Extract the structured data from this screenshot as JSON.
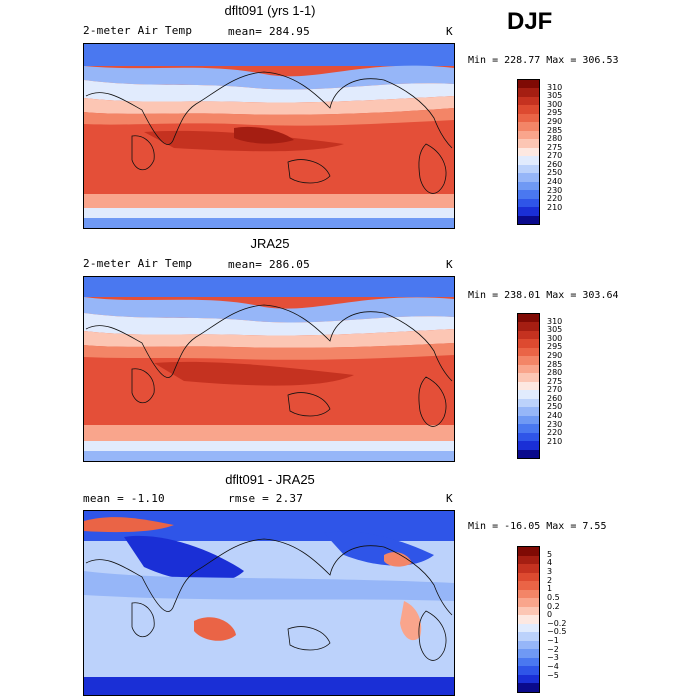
{
  "season": "DJF",
  "colors": {
    "temp_scale": [
      "#0a0a8c",
      "#1a2fd6",
      "#2f55e8",
      "#4a78f0",
      "#6f99f4",
      "#96b6f8",
      "#bcd2fb",
      "#e1ebfd",
      "#fde8e1",
      "#fcc6b4",
      "#f9a58c",
      "#f38567",
      "#ea6446",
      "#dd4a30",
      "#c53220",
      "#a51e12",
      "#7f0a04"
    ],
    "diff_scale": [
      "#0a0a8c",
      "#1a2fd6",
      "#2f55e8",
      "#4a78f0",
      "#6f99f4",
      "#96b6f8",
      "#bcd2fb",
      "#e1ebfd",
      "#fde8e1",
      "#fcc6b4",
      "#f9a58c",
      "#f38567",
      "#ea6446",
      "#dd4a30",
      "#c53220",
      "#a51e12",
      "#7f0a04"
    ]
  },
  "panels": [
    {
      "title": "dflt091 (yrs 1-1)",
      "variable": "2-meter Air Temp",
      "stat_label": "mean=",
      "stat_value": "284.95",
      "units": "K",
      "minmax": "Min = 228.77 Max = 306.53",
      "colorbar_labels": [
        "310",
        "305",
        "300",
        "295",
        "290",
        "285",
        "280",
        "275",
        "270",
        "260",
        "250",
        "240",
        "230",
        "220",
        "210"
      ]
    },
    {
      "title": "JRA25",
      "variable": "2-meter Air Temp",
      "stat_label": "mean=",
      "stat_value": "286.05",
      "units": "K",
      "minmax": "Min = 238.01 Max = 303.64",
      "colorbar_labels": [
        "310",
        "305",
        "300",
        "295",
        "290",
        "285",
        "280",
        "275",
        "270",
        "260",
        "250",
        "240",
        "230",
        "220",
        "210"
      ]
    },
    {
      "title": "dflt091 - JRA25",
      "stat_label": "mean =",
      "stat_value": "-1.10",
      "rmse_label": "rmse =",
      "rmse_value": "2.37",
      "units": "K",
      "minmax": "Min = -16.05 Max =   7.55",
      "colorbar_labels": [
        "5",
        "4",
        "3",
        "2",
        "1",
        "0.5",
        "0.2",
        "0",
        "−0.2",
        "−0.5",
        "−1",
        "−2",
        "−3",
        "−4",
        "−5"
      ]
    }
  ]
}
